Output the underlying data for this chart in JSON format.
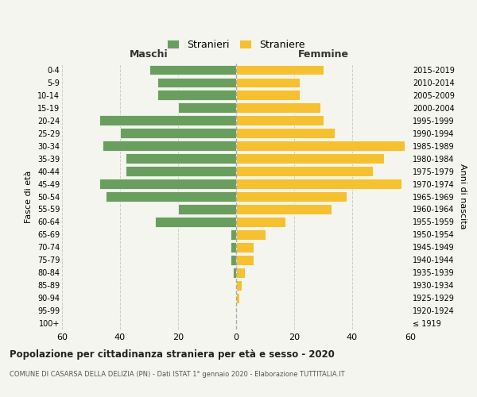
{
  "age_groups": [
    "100+",
    "95-99",
    "90-94",
    "85-89",
    "80-84",
    "75-79",
    "70-74",
    "65-69",
    "60-64",
    "55-59",
    "50-54",
    "45-49",
    "40-44",
    "35-39",
    "30-34",
    "25-29",
    "20-24",
    "15-19",
    "10-14",
    "5-9",
    "0-4"
  ],
  "birth_years": [
    "≤ 1919",
    "1920-1924",
    "1925-1929",
    "1930-1934",
    "1935-1939",
    "1940-1944",
    "1945-1949",
    "1950-1954",
    "1955-1959",
    "1960-1964",
    "1965-1969",
    "1970-1974",
    "1975-1979",
    "1980-1984",
    "1985-1989",
    "1990-1994",
    "1995-1999",
    "2000-2004",
    "2005-2009",
    "2010-2014",
    "2015-2019"
  ],
  "maschi": [
    0,
    0,
    0,
    0,
    1,
    2,
    2,
    2,
    28,
    20,
    45,
    47,
    38,
    38,
    46,
    40,
    47,
    20,
    27,
    27,
    30
  ],
  "femmine": [
    0,
    0,
    1,
    2,
    3,
    6,
    6,
    10,
    17,
    33,
    38,
    57,
    47,
    51,
    58,
    34,
    30,
    29,
    22,
    22,
    30
  ],
  "male_color": "#6a9e5e",
  "female_color": "#f5c131",
  "bg_color": "#f5f5f0",
  "grid_color": "#cccccc",
  "title": "Popolazione per cittadinanza straniera per età e sesso - 2020",
  "subtitle": "COMUNE DI CASARSA DELLA DELIZIA (PN) - Dati ISTAT 1° gennaio 2020 - Elaborazione TUTTITALIA.IT",
  "xlabel_left": "Maschi",
  "xlabel_right": "Femmine",
  "ylabel_left": "Fasce di età",
  "ylabel_right": "Anni di nascita",
  "legend_male": "Stranieri",
  "legend_female": "Straniere",
  "xlim": 60
}
